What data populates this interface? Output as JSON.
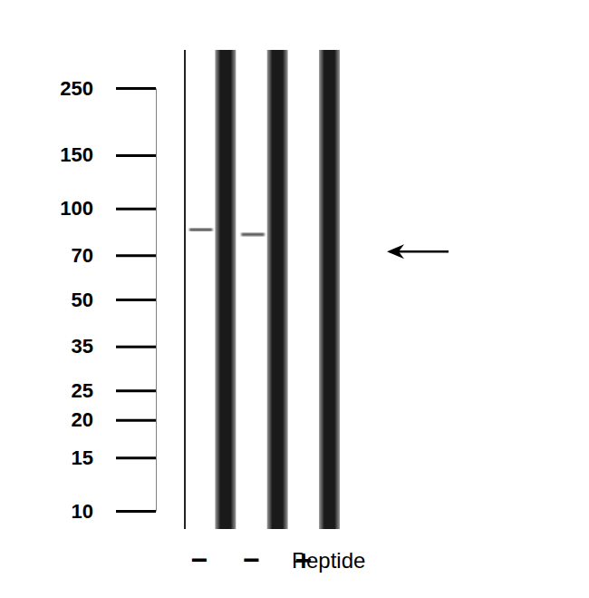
{
  "chart_data": {
    "type": "western_blot",
    "xlabel": "Peptide",
    "categories": [
      "−",
      "−",
      "+"
    ],
    "values": [
      85,
      82,
      null
    ],
    "arrow": 72,
    "log": "y",
    "ylim": [
      10,
      250
    ],
    "yticks": [
      10,
      15,
      20,
      25,
      35,
      50,
      70,
      100,
      150,
      250
    ],
    "color": "#3a3a3a"
  }
}
